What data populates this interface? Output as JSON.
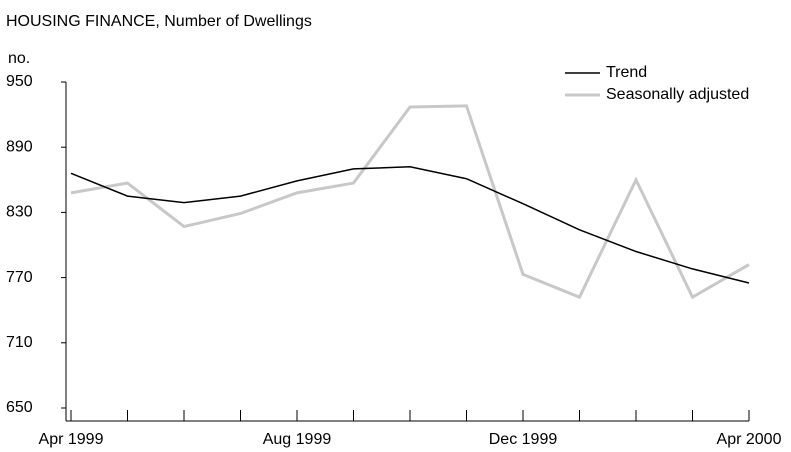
{
  "chart_data": {
    "type": "line",
    "title": "HOUSING FINANCE, Number of Dwellings",
    "y_label": "no.",
    "categories": [
      "Apr 1999",
      null,
      null,
      null,
      "Aug 1999",
      null,
      null,
      null,
      "Dec 1999",
      null,
      null,
      null,
      "Apr 2000"
    ],
    "series": [
      {
        "name": "Trend",
        "color": "#000000",
        "values": [
          866,
          845,
          839,
          845,
          859,
          870,
          872,
          861,
          838,
          814,
          794,
          778,
          765
        ]
      },
      {
        "name": "Seasonally adjusted",
        "color": "#c8c8c8",
        "values": [
          848,
          857,
          817,
          829,
          848,
          857,
          927,
          928,
          773,
          752,
          860,
          752,
          782
        ]
      }
    ],
    "ylim": [
      650,
      950
    ],
    "yticks": [
      650,
      710,
      770,
      830,
      890,
      950
    ],
    "grid": false,
    "legend": "top-right"
  }
}
